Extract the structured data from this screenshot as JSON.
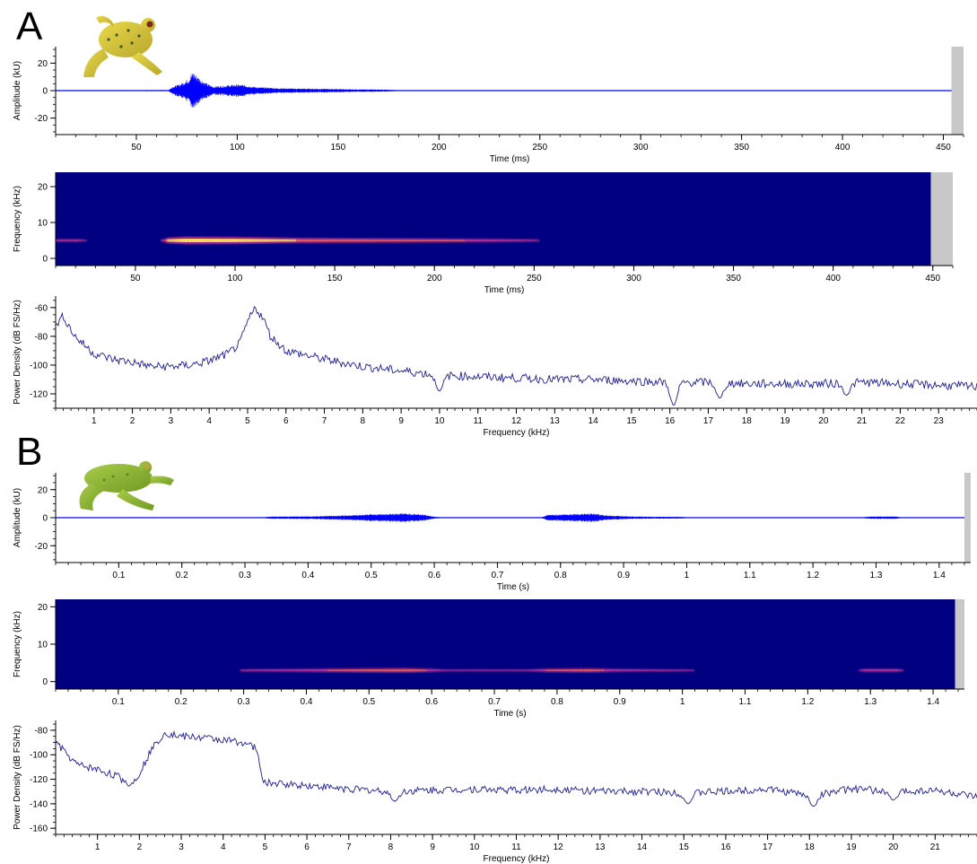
{
  "panels": [
    {
      "letter": "A",
      "frog_colors": {
        "body": "#d6c43a",
        "spots": "#3c5a2a",
        "eye": "#7a2a1a"
      }
    },
    {
      "letter": "B",
      "frog_colors": {
        "body": "#8fb83a",
        "spots": "#5a7d20",
        "eye": "#c8a23a"
      }
    }
  ],
  "colors": {
    "waveform": "#0000ff",
    "spectrum_line": "#1c1c9c",
    "spectrogram_bg": "#000080",
    "out_of_range": "#c8c8c8"
  },
  "chart_data": [
    {
      "id": "A-wave",
      "type": "line",
      "subtype": "waveform",
      "xlabel": "Time (ms)",
      "ylabel": "Amplitude (kU)",
      "xlim": [
        10,
        460
      ],
      "ylim": [
        -32,
        32
      ],
      "xticks": [
        50,
        100,
        150,
        200,
        250,
        300,
        350,
        400,
        450
      ],
      "yticks": [
        -20,
        0,
        20
      ],
      "minor_x": 10,
      "minor_y": 5,
      "data_end": 454,
      "envelope": [
        [
          10,
          0.3
        ],
        [
          66,
          0.4
        ],
        [
          68,
          3
        ],
        [
          72,
          5
        ],
        [
          76,
          9
        ],
        [
          78,
          14
        ],
        [
          80,
          11
        ],
        [
          84,
          6
        ],
        [
          88,
          3
        ],
        [
          92,
          3.5
        ],
        [
          96,
          4
        ],
        [
          100,
          4.5
        ],
        [
          104,
          4
        ],
        [
          110,
          2.5
        ],
        [
          116,
          2.2
        ],
        [
          120,
          1.8
        ],
        [
          130,
          1.5
        ],
        [
          140,
          1.4
        ],
        [
          150,
          1.2
        ],
        [
          158,
          0.9
        ],
        [
          165,
          0.9
        ],
        [
          172,
          0.8
        ],
        [
          180,
          0.3
        ],
        [
          454,
          0.3
        ]
      ]
    },
    {
      "id": "A-spec",
      "type": "heatmap",
      "subtype": "spectrogram",
      "xlabel": "Time (ms)",
      "ylabel": "Frequency (kHz)",
      "xlim": [
        10,
        460
      ],
      "ylim": [
        -2,
        24
      ],
      "xticks": [
        50,
        100,
        150,
        200,
        250,
        300,
        350,
        400,
        450
      ],
      "yticks": [
        0,
        10,
        20
      ],
      "minor_x": 10,
      "data_end": 449,
      "band_freq": 5,
      "intensity": [
        [
          10,
          0.2
        ],
        [
          20,
          0.25
        ],
        [
          25,
          0.0
        ],
        [
          62,
          0.0
        ],
        [
          66,
          0.7
        ],
        [
          75,
          1.0
        ],
        [
          100,
          0.9
        ],
        [
          130,
          0.6
        ],
        [
          160,
          0.5
        ],
        [
          200,
          0.4
        ],
        [
          230,
          0.3
        ],
        [
          250,
          0.12
        ],
        [
          252,
          0.0
        ],
        [
          449,
          0.0
        ]
      ]
    },
    {
      "id": "A-psd",
      "type": "line",
      "subtype": "power spectrum",
      "xlabel": "Frequency (kHz)",
      "ylabel": "Power Density (dB FS/Hz)",
      "xlim": [
        0,
        24
      ],
      "ylim": [
        -130,
        -52
      ],
      "xticks": [
        1,
        2,
        3,
        4,
        5,
        6,
        7,
        8,
        9,
        10,
        11,
        12,
        13,
        14,
        15,
        16,
        17,
        18,
        19,
        20,
        21,
        22,
        23
      ],
      "yticks": [
        -60,
        -80,
        -100,
        -120
      ],
      "minor_x": 0.2,
      "minor_y": 5,
      "points": [
        [
          0,
          -72
        ],
        [
          0.2,
          -66
        ],
        [
          0.5,
          -80
        ],
        [
          1,
          -92
        ],
        [
          1.5,
          -96
        ],
        [
          2,
          -98
        ],
        [
          2.5,
          -101
        ],
        [
          3,
          -101
        ],
        [
          3.5,
          -100
        ],
        [
          4,
          -97
        ],
        [
          4.5,
          -92
        ],
        [
          4.8,
          -85
        ],
        [
          5.0,
          -70
        ],
        [
          5.2,
          -60
        ],
        [
          5.4,
          -67
        ],
        [
          5.6,
          -80
        ],
        [
          6,
          -90
        ],
        [
          7,
          -96
        ],
        [
          8,
          -101
        ],
        [
          9,
          -104
        ],
        [
          10,
          -107
        ],
        [
          11,
          -108
        ],
        [
          12,
          -109
        ],
        [
          13,
          -110
        ],
        [
          14,
          -110
        ],
        [
          15,
          -111
        ],
        [
          16,
          -112
        ],
        [
          17,
          -112
        ],
        [
          18,
          -113
        ],
        [
          19,
          -113
        ],
        [
          20,
          -113
        ],
        [
          21,
          -112
        ],
        [
          22,
          -113
        ],
        [
          23,
          -114
        ],
        [
          24,
          -115
        ]
      ],
      "dips": [
        [
          10.0,
          -118
        ],
        [
          16.1,
          -128
        ],
        [
          17.3,
          -123
        ],
        [
          20.6,
          -121
        ]
      ]
    },
    {
      "id": "B-wave",
      "type": "line",
      "subtype": "waveform",
      "xlabel": "Time (s)",
      "ylabel": "Amplitude (kU)",
      "xlim": [
        0,
        1.45
      ],
      "ylim": [
        -32,
        32
      ],
      "xticks": [
        0.1,
        0.2,
        0.3,
        0.4,
        0.5,
        0.6,
        0.7,
        0.8,
        0.9,
        1,
        1.1,
        1.2,
        1.3,
        1.4
      ],
      "yticks": [
        -20,
        0,
        20
      ],
      "minor_x": 0.02,
      "minor_y": 5,
      "data_end": 1.44,
      "envelope": [
        [
          0,
          0.3
        ],
        [
          0.33,
          0.3
        ],
        [
          0.34,
          0.8
        ],
        [
          0.4,
          1.0
        ],
        [
          0.45,
          1.5
        ],
        [
          0.5,
          2.5
        ],
        [
          0.55,
          3.2
        ],
        [
          0.58,
          2.5
        ],
        [
          0.6,
          0.8
        ],
        [
          0.61,
          0.3
        ],
        [
          0.77,
          0.3
        ],
        [
          0.78,
          2.0
        ],
        [
          0.82,
          2.8
        ],
        [
          0.85,
          3.0
        ],
        [
          0.88,
          1.5
        ],
        [
          0.92,
          0.8
        ],
        [
          0.99,
          0.6
        ],
        [
          1.0,
          0.3
        ],
        [
          1.28,
          0.3
        ],
        [
          1.29,
          0.9
        ],
        [
          1.33,
          0.9
        ],
        [
          1.34,
          0.3
        ],
        [
          1.44,
          0.3
        ]
      ]
    },
    {
      "id": "B-spec",
      "type": "heatmap",
      "subtype": "spectrogram",
      "xlabel": "Time (s)",
      "ylabel": "Frequency (kHz)",
      "xlim": [
        0,
        1.45
      ],
      "ylim": [
        -2,
        22
      ],
      "xticks": [
        0.1,
        0.2,
        0.3,
        0.4,
        0.5,
        0.6,
        0.7,
        0.8,
        0.9,
        1,
        1.1,
        1.2,
        1.3,
        1.4
      ],
      "yticks": [
        0,
        10,
        20
      ],
      "minor_x": 0.02,
      "data_end": 1.435,
      "band_freq": 3,
      "intensity": [
        [
          0,
          0.0
        ],
        [
          0.29,
          0.0
        ],
        [
          0.3,
          0.15
        ],
        [
          0.4,
          0.3
        ],
        [
          0.5,
          0.45
        ],
        [
          0.56,
          0.5
        ],
        [
          0.6,
          0.3
        ],
        [
          0.62,
          0.08
        ],
        [
          0.75,
          0.08
        ],
        [
          0.78,
          0.35
        ],
        [
          0.85,
          0.45
        ],
        [
          0.9,
          0.25
        ],
        [
          1.0,
          0.08
        ],
        [
          1.02,
          0.0
        ],
        [
          1.28,
          0.0
        ],
        [
          1.29,
          0.3
        ],
        [
          1.34,
          0.3
        ],
        [
          1.35,
          0.0
        ],
        [
          1.435,
          0.0
        ]
      ]
    },
    {
      "id": "B-psd",
      "type": "line",
      "subtype": "power spectrum",
      "xlabel": "Frequency (kHz)",
      "ylabel": "Power Density (dB FS/Hz)",
      "xlim": [
        0,
        22
      ],
      "ylim": [
        -165,
        -72
      ],
      "xticks": [
        1,
        2,
        3,
        4,
        5,
        6,
        7,
        8,
        9,
        10,
        11,
        12,
        13,
        14,
        15,
        16,
        17,
        18,
        19,
        20,
        21
      ],
      "yticks": [
        -80,
        -100,
        -120,
        -140,
        -160
      ],
      "minor_x": 0.2,
      "minor_y": 5,
      "points": [
        [
          0,
          -90
        ],
        [
          0.5,
          -108
        ],
        [
          1,
          -112
        ],
        [
          1.5,
          -118
        ],
        [
          1.8,
          -125
        ],
        [
          2,
          -115
        ],
        [
          2.3,
          -95
        ],
        [
          2.6,
          -82
        ],
        [
          3,
          -85
        ],
        [
          3.5,
          -86
        ],
        [
          4,
          -88
        ],
        [
          4.5,
          -90
        ],
        [
          4.8,
          -95
        ],
        [
          4.9,
          -115
        ],
        [
          5,
          -123
        ],
        [
          6,
          -125
        ],
        [
          7,
          -128
        ],
        [
          8,
          -130
        ],
        [
          9,
          -129
        ],
        [
          10,
          -128
        ],
        [
          11,
          -129
        ],
        [
          12,
          -128
        ],
        [
          13,
          -130
        ],
        [
          14,
          -130
        ],
        [
          15,
          -131
        ],
        [
          16,
          -130
        ],
        [
          17,
          -128
        ],
        [
          18,
          -133
        ],
        [
          19,
          -128
        ],
        [
          20,
          -130
        ],
        [
          21,
          -129
        ],
        [
          22,
          -135
        ]
      ],
      "dips": [
        [
          8.1,
          -138
        ],
        [
          15.1,
          -140
        ],
        [
          18.1,
          -142
        ],
        [
          20.0,
          -137
        ]
      ]
    }
  ]
}
